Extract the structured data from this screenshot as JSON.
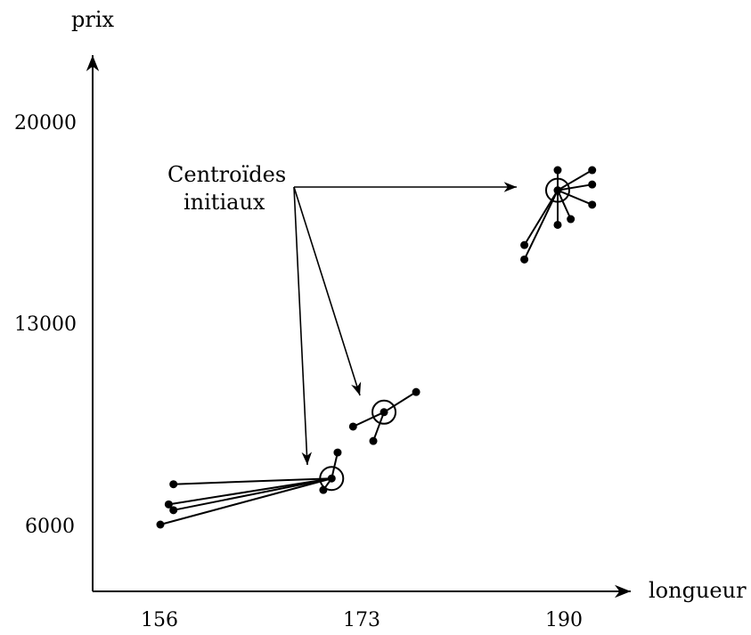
{
  "axes": {
    "y_label": "prix",
    "x_label": "longueur",
    "y_ticks": [
      "20000",
      "13000",
      "6000"
    ],
    "x_ticks": [
      "156",
      "173",
      "190"
    ]
  },
  "annotation": {
    "line1": "Centroïdes",
    "line2": "initiaux"
  },
  "clusters": [
    {
      "centroid": {
        "x": 170.4,
        "y": 7600
      },
      "points": [
        {
          "x": 157.1,
          "y": 7400
        },
        {
          "x": 156.7,
          "y": 6700
        },
        {
          "x": 157.1,
          "y": 6500
        },
        {
          "x": 156.0,
          "y": 6000
        },
        {
          "x": 169.7,
          "y": 7200
        },
        {
          "x": 170.9,
          "y": 8500
        }
      ]
    },
    {
      "centroid": {
        "x": 174.8,
        "y": 9900
      },
      "points": [
        {
          "x": 172.2,
          "y": 9400
        },
        {
          "x": 173.9,
          "y": 8900
        },
        {
          "x": 177.5,
          "y": 10600
        }
      ]
    },
    {
      "centroid": {
        "x": 189.4,
        "y": 17600
      },
      "points": [
        {
          "x": 186.6,
          "y": 15700
        },
        {
          "x": 186.6,
          "y": 15200
        },
        {
          "x": 189.4,
          "y": 18300
        },
        {
          "x": 189.4,
          "y": 16400
        },
        {
          "x": 190.5,
          "y": 16600
        },
        {
          "x": 192.3,
          "y": 18300
        },
        {
          "x": 192.3,
          "y": 17800
        },
        {
          "x": 192.3,
          "y": 17100
        }
      ]
    }
  ]
}
